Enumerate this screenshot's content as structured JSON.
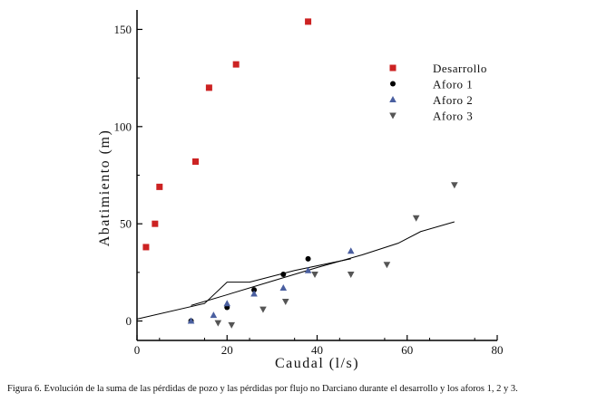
{
  "chart_data": {
    "type": "scatter",
    "xlabel": "Caudal (l/s)",
    "ylabel": "Abatimiento (m)",
    "xlim": [
      0,
      80
    ],
    "ylim": [
      -10,
      160
    ],
    "x_ticks": [
      0,
      20,
      40,
      60,
      80
    ],
    "y_ticks": [
      0,
      50,
      100,
      150
    ],
    "grid": false,
    "legend_position": "top-right",
    "series": [
      {
        "name": "Desarrollo",
        "marker": "square",
        "color": "#cc2222",
        "points": [
          [
            2,
            38
          ],
          [
            4,
            50
          ],
          [
            5,
            69
          ],
          [
            13,
            82
          ],
          [
            16,
            120
          ],
          [
            22,
            132
          ],
          [
            38,
            154
          ]
        ]
      },
      {
        "name": "Aforo 1",
        "marker": "circle",
        "color": "#000000",
        "points": [
          [
            12,
            0
          ],
          [
            20,
            7
          ],
          [
            26,
            16
          ],
          [
            32.5,
            24
          ],
          [
            38,
            32
          ]
        ]
      },
      {
        "name": "Aforo 2",
        "marker": "triangle-up",
        "color": "#4a5fa0",
        "points": [
          [
            12,
            0
          ],
          [
            17,
            3
          ],
          [
            20,
            9
          ],
          [
            26,
            14
          ],
          [
            32.5,
            17
          ],
          [
            38,
            26
          ],
          [
            47.5,
            36
          ]
        ]
      },
      {
        "name": "Aforo 3",
        "marker": "triangle-down",
        "color": "#555555",
        "points": [
          [
            18,
            -1
          ],
          [
            21,
            -2
          ],
          [
            28,
            6
          ],
          [
            33,
            10
          ],
          [
            39.5,
            24
          ],
          [
            47.5,
            24
          ],
          [
            55.5,
            29
          ],
          [
            62,
            53
          ],
          [
            70.5,
            70
          ]
        ]
      }
    ],
    "lines": [
      {
        "color": "#000000",
        "points": [
          [
            0,
            1
          ],
          [
            15,
            9
          ],
          [
            20,
            20
          ],
          [
            25,
            20
          ],
          [
            35,
            26
          ],
          [
            47.5,
            32
          ]
        ]
      },
      {
        "color": "#000000",
        "points": [
          [
            12,
            8
          ],
          [
            20,
            13.5
          ],
          [
            30,
            20.5
          ],
          [
            40,
            27.5
          ],
          [
            50,
            34
          ],
          [
            58,
            40
          ],
          [
            63,
            46
          ],
          [
            70.5,
            51
          ]
        ]
      }
    ]
  },
  "caption": "Figura 6. Evolución de la suma de las pérdidas de pozo y las pérdidas por flujo no Darciano durante el desarrollo y los aforos 1, 2 y 3."
}
